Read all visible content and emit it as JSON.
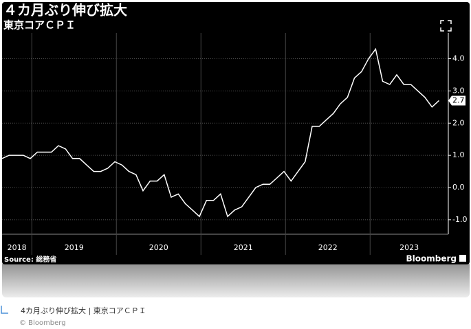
{
  "chart_data": {
    "type": "line",
    "title": "４カ月ぶり伸び拡大",
    "subtitle": "東京コアＣＰＩ",
    "source": "Source: 総務省",
    "brand": "Bloomberg",
    "color": "#ffffff",
    "categories": [
      "2018",
      null,
      null,
      null,
      null,
      "2019",
      null,
      null,
      null,
      null,
      null,
      null,
      null,
      null,
      null,
      null,
      null,
      "2020",
      null,
      null,
      null,
      null,
      null,
      null,
      null,
      null,
      null,
      null,
      null,
      "2021",
      null,
      null,
      null,
      null,
      null,
      null,
      null,
      null,
      null,
      null,
      null,
      "2022",
      null,
      null,
      null,
      null,
      null,
      null,
      null,
      null,
      null,
      null,
      null,
      "2023",
      null,
      null,
      null,
      null,
      null,
      null,
      null,
      null,
      null
    ],
    "values": [
      0.9,
      1.0,
      1.0,
      1.0,
      0.9,
      1.1,
      1.1,
      1.1,
      1.3,
      1.2,
      0.9,
      0.9,
      0.7,
      0.5,
      0.5,
      0.6,
      0.8,
      0.7,
      0.5,
      0.4,
      -0.1,
      0.2,
      0.2,
      0.4,
      -0.3,
      -0.2,
      -0.5,
      -0.7,
      -0.9,
      -0.4,
      -0.4,
      -0.2,
      -0.9,
      -0.7,
      -0.6,
      -0.3,
      0.0,
      0.1,
      0.1,
      0.3,
      0.5,
      0.2,
      0.5,
      0.8,
      1.9,
      1.9,
      2.1,
      2.3,
      2.6,
      2.8,
      3.4,
      3.6,
      4.0,
      4.3,
      3.3,
      3.2,
      3.5,
      3.2,
      3.2,
      3.0,
      2.8,
      2.5,
      2.7
    ],
    "ylim": [
      -1.45,
      4.8
    ],
    "yticks": [
      {
        "value": -1,
        "label": "-1.0"
      },
      {
        "value": 0,
        "label": "0.0"
      },
      {
        "value": 1,
        "label": "1.0"
      },
      {
        "value": 2,
        "label": "2.0"
      },
      {
        "value": 3,
        "label": "3.0"
      },
      {
        "value": 4,
        "label": "4.0"
      }
    ],
    "grid": true
  },
  "caption": "4カ月ぶり伸び拡大 | 東京コアＣＰＩ",
  "credit": "© Bloomberg"
}
